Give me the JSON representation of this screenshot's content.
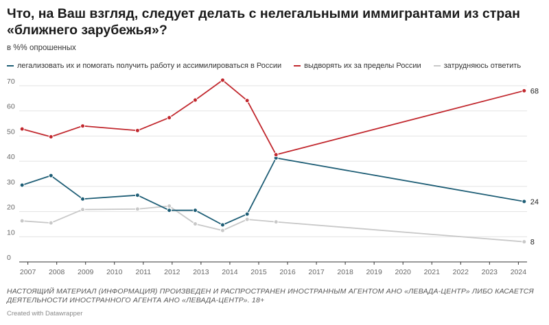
{
  "title": "Что, на Ваш взгляд, следует делать с нелегальными иммигрантами из стран «ближнего зарубежья»?",
  "subtitle": "в %% опрошенных",
  "note": "НАСТОЯЩИЙ МАТЕРИАЛ (ИНФОРМАЦИЯ) ПРОИЗВЕДЕН И РАСПРОСТРАНЕН ИНОСТРАННЫМ АГЕНТОМ АНО «ЛЕВАДА-ЦЕНТР» ЛИБО КАСАЕТСЯ ДЕЯТЕЛЬНОСТИ ИНОСТРАННОГО АГЕНТА АНО «ЛЕВАДА-ЦЕНТР». 18+",
  "credit": "Created with Datawrapper",
  "chart_data": {
    "type": "line",
    "x_range": [
      2006.7,
      2024.3
    ],
    "ylim": [
      0,
      70
    ],
    "y_ticks": [
      0,
      10,
      20,
      30,
      40,
      50,
      60,
      70
    ],
    "x_ticks": [
      2007,
      2008,
      2009,
      2010,
      2011,
      2012,
      2013,
      2014,
      2015,
      2016,
      2017,
      2018,
      2019,
      2020,
      2021,
      2022,
      2023,
      2024
    ],
    "grid": "horizontal",
    "legend_position": "top",
    "series": [
      {
        "name": "легализовать их и помогать получить работу и ассимилироваться в России",
        "color": "#1d5d75",
        "x": [
          2006.8,
          2007.8,
          2008.9,
          2010.8,
          2011.9,
          2012.8,
          2013.75,
          2014.6,
          2015.6,
          2024.2
        ],
        "y": [
          30.5,
          34.3,
          25.0,
          26.5,
          20.5,
          20.5,
          14.7,
          19.0,
          41.3,
          24
        ],
        "end_label": "24"
      },
      {
        "name": "выдворять их за пределы России",
        "color": "#c1272d",
        "x": [
          2006.8,
          2007.8,
          2008.9,
          2010.8,
          2011.9,
          2012.8,
          2013.75,
          2014.6,
          2015.6,
          2024.2
        ],
        "y": [
          52.8,
          49.7,
          54.0,
          52.2,
          57.3,
          64.3,
          72.2,
          64.1,
          42.6,
          68
        ],
        "end_label": "68"
      },
      {
        "name": "затрудняюсь ответить",
        "color": "#c8c8c8",
        "x": [
          2006.8,
          2007.8,
          2008.9,
          2010.8,
          2011.9,
          2012.8,
          2013.75,
          2014.6,
          2015.6,
          2024.2
        ],
        "y": [
          16.3,
          15.5,
          20.8,
          21.0,
          22.2,
          15.1,
          12.5,
          16.9,
          15.9,
          8
        ],
        "end_label": "8"
      }
    ]
  }
}
